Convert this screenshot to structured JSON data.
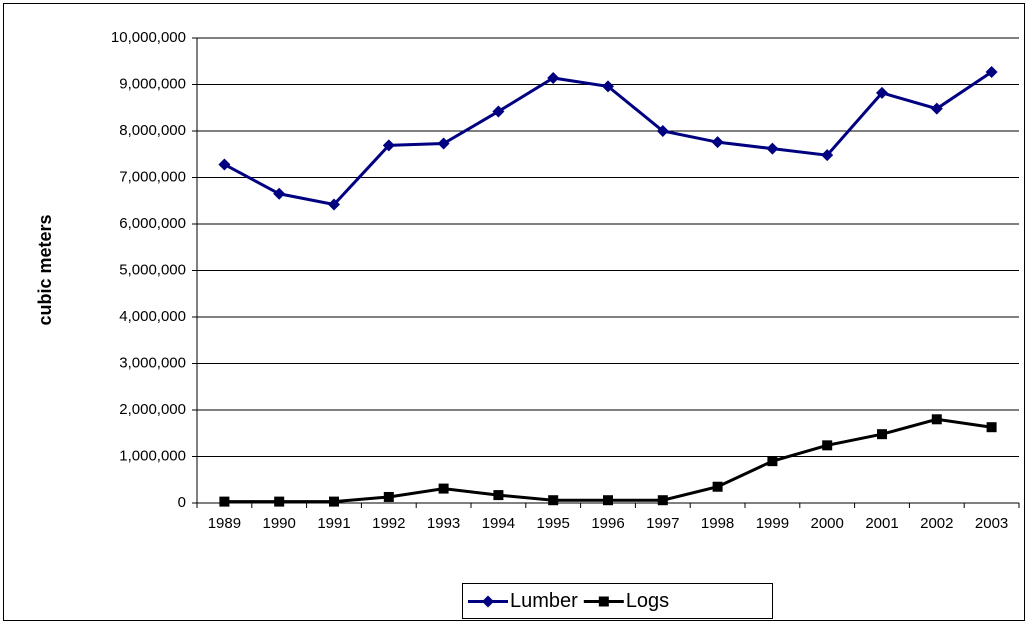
{
  "chart_data": {
    "type": "line",
    "y_label": "cubic meters",
    "categories": [
      "1989",
      "1990",
      "1991",
      "1992",
      "1993",
      "1994",
      "1995",
      "1996",
      "1997",
      "1998",
      "1999",
      "2000",
      "2001",
      "2002",
      "2003"
    ],
    "series": [
      {
        "name": "Lumber",
        "color": "#000080",
        "marker": "diamond",
        "values": [
          7280000,
          6650000,
          6420000,
          7690000,
          7730000,
          8420000,
          9140000,
          8960000,
          8000000,
          7760000,
          7620000,
          7480000,
          8820000,
          8480000,
          9270000
        ]
      },
      {
        "name": "Logs",
        "color": "#000000",
        "marker": "square",
        "values": [
          30000,
          30000,
          30000,
          130000,
          310000,
          170000,
          60000,
          60000,
          60000,
          350000,
          900000,
          1240000,
          1480000,
          1800000,
          1630000
        ]
      }
    ],
    "ylim": [
      0,
      10000000
    ],
    "yticks": [
      0,
      {
        "value": 1000000,
        "label": "1,000,000"
      },
      {
        "value": 2000000,
        "label": "2,000,000"
      },
      {
        "value": 3000000,
        "label": "3,000,000"
      },
      {
        "value": 4000000,
        "label": "4,000,000"
      },
      {
        "value": 5000000,
        "label": "5,000,000"
      },
      {
        "value": 6000000,
        "label": "6,000,000"
      },
      {
        "value": 7000000,
        "label": "7,000,000"
      },
      {
        "value": 8000000,
        "label": "8,000,000"
      },
      {
        "value": 9000000,
        "label": "9,000,000"
      },
      {
        "value": 10000000,
        "label": "10,000,000"
      }
    ],
    "grid": true,
    "legend": "bottom"
  }
}
